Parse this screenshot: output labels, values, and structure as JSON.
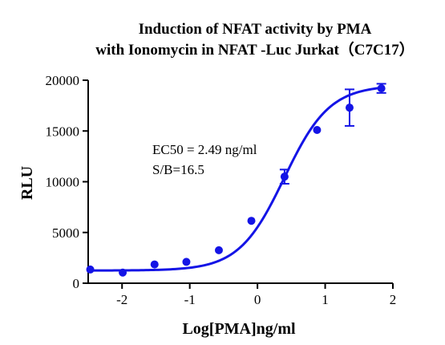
{
  "chart_data": {
    "type": "scatter",
    "title": "Induction of NFAT activity by PMA",
    "subtitle": "with Ionomycin in NFAT -Luc Jurkat（C7C17）",
    "xlabel": "Log[PMA]ng/ml",
    "ylabel": "RLU",
    "xlim": [
      -2.5,
      2.0
    ],
    "ylim": [
      0,
      20000
    ],
    "x_ticks": [
      -2,
      -1,
      0,
      1,
      2
    ],
    "y_ticks": [
      0,
      5000,
      10000,
      15000,
      20000
    ],
    "x_tick_labels": [
      "-2",
      "-1",
      "0",
      "1",
      "2"
    ],
    "y_tick_labels": [
      "0",
      "5000",
      "10000",
      "15000",
      "20000"
    ],
    "series": [
      {
        "color": "#1414E6",
        "points": [
          {
            "x": -2.47,
            "y": 1350,
            "err": 0
          },
          {
            "x": -1.99,
            "y": 1050,
            "err": 0
          },
          {
            "x": -1.52,
            "y": 1850,
            "err": 0
          },
          {
            "x": -1.05,
            "y": 2100,
            "err": 0
          },
          {
            "x": -0.57,
            "y": 3250,
            "err": 0
          },
          {
            "x": -0.09,
            "y": 6150,
            "err": 0
          },
          {
            "x": 0.4,
            "y": 10500,
            "err": 700
          },
          {
            "x": 0.88,
            "y": 15100,
            "err": 0
          },
          {
            "x": 1.36,
            "y": 17300,
            "err": 1800
          },
          {
            "x": 1.83,
            "y": 19200,
            "err": 450
          }
        ],
        "fit": {
          "bottom": 1250,
          "top": 19500,
          "log_ec50": 0.396,
          "hill": 1.3
        }
      }
    ],
    "annotations": [
      "EC50 = 2.49 ng/ml",
      "S/B=16.5"
    ],
    "grid": false,
    "legend": "none"
  }
}
